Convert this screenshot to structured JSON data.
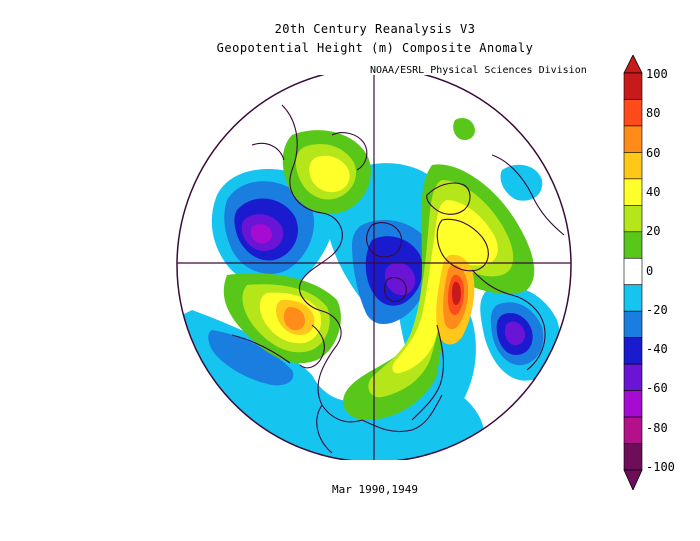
{
  "title": {
    "line1": "20th Century Reanalysis V3",
    "line2": "Geopotential Height (m) Composite Anomaly"
  },
  "credit": "NOAA/ESRL Physical Sciences Division",
  "date_label": "Mar 1990,1949",
  "colorbar": {
    "labels": [
      "100",
      "80",
      "60",
      "40",
      "20",
      "0",
      "-20",
      "-40",
      "-60",
      "-80",
      "-100"
    ],
    "colors": [
      "#c71b1b",
      "#ff4a1a",
      "#ff8c1a",
      "#ffc71a",
      "#ffff2a",
      "#b4e61a",
      "#59c71a",
      "#ffffff",
      "#16c4f0",
      "#1a7de0",
      "#1a1acf",
      "#6a14d6",
      "#a60bd1",
      "#b4108a",
      "#6e0d5a"
    ]
  },
  "map": {
    "projection": "north-polar-stereographic",
    "anomaly_regions": [
      {
        "name": "north-pacific-low",
        "value": -90
      },
      {
        "name": "arctic-low",
        "value": -70
      },
      {
        "name": "western-europe-high",
        "value": 100
      },
      {
        "name": "siberia-low",
        "value": -70
      },
      {
        "name": "eastern-us-high",
        "value": 70
      },
      {
        "name": "greenland-high",
        "value": 50
      }
    ]
  }
}
